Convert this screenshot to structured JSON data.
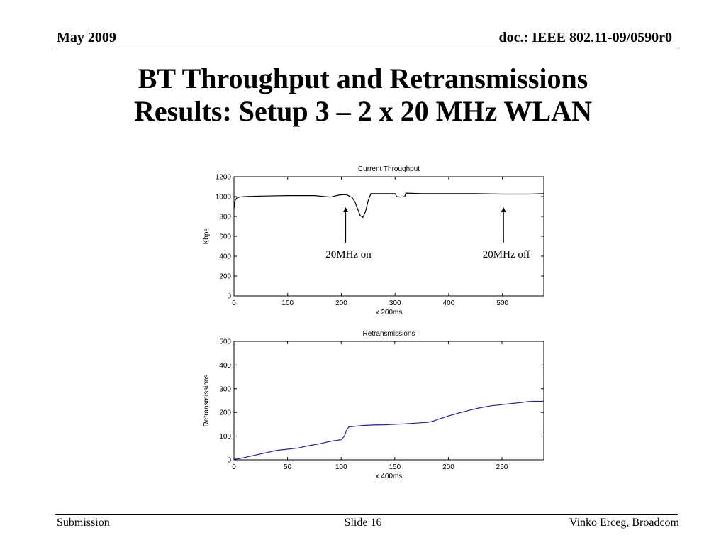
{
  "header": {
    "left": "May 2009",
    "right": "doc.: IEEE 802.11-09/0590r0"
  },
  "title": {
    "line1": "BT Throughput and Retransmissions",
    "line2": "Results: Setup 3 – 2 x 20 MHz WLAN"
  },
  "footer": {
    "left": "Submission",
    "center": "Slide 16",
    "right": "Vinko Erceg, Broadcom"
  },
  "chart_data": [
    {
      "type": "line",
      "title": "Current Throughput",
      "xlabel": "x 200ms",
      "ylabel": "Kbps",
      "xlim": [
        0,
        577
      ],
      "ylim": [
        0,
        1200
      ],
      "xticks": [
        0,
        100,
        200,
        300,
        400,
        500
      ],
      "yticks": [
        0,
        200,
        400,
        600,
        800,
        1000,
        1200
      ],
      "grid": false,
      "line_color": "#000000",
      "series": [
        {
          "x": [
            0,
            2,
            5,
            10,
            20,
            50,
            100,
            150,
            180,
            195,
            205,
            210,
            215,
            220,
            225,
            230,
            235,
            240,
            245,
            250,
            255,
            300,
            303,
            310,
            318,
            320,
            350,
            400,
            450,
            500,
            550,
            577
          ],
          "y": [
            880,
            960,
            985,
            995,
            1000,
            1005,
            1010,
            1010,
            995,
            1015,
            1020,
            1018,
            1005,
            990,
            950,
            880,
            810,
            790,
            850,
            960,
            1030,
            1030,
            1000,
            995,
            1000,
            1035,
            1030,
            1030,
            1030,
            1025,
            1025,
            1030
          ]
        }
      ],
      "annotations": [
        {
          "text": "20MHz on",
          "x": 208
        },
        {
          "text": "20MHz off",
          "x": 502
        }
      ]
    },
    {
      "type": "line",
      "title": "Retransmissions",
      "xlabel": "x 400ms",
      "ylabel": "Retransmissions",
      "xlim": [
        0,
        289
      ],
      "ylim": [
        0,
        500
      ],
      "xticks": [
        0,
        50,
        100,
        150,
        200,
        250
      ],
      "yticks": [
        0,
        100,
        200,
        300,
        400,
        500
      ],
      "grid": false,
      "line_color": "#1f1fb0",
      "series": [
        {
          "x": [
            0,
            5,
            10,
            20,
            30,
            40,
            50,
            60,
            70,
            80,
            90,
            100,
            103,
            105,
            107,
            110,
            120,
            130,
            140,
            150,
            160,
            170,
            180,
            185,
            190,
            200,
            210,
            220,
            230,
            240,
            250,
            260,
            270,
            275,
            280,
            289
          ],
          "y": [
            2,
            5,
            10,
            20,
            30,
            40,
            45,
            50,
            60,
            68,
            78,
            85,
            100,
            125,
            138,
            140,
            145,
            147,
            148,
            150,
            152,
            155,
            158,
            162,
            170,
            185,
            198,
            210,
            220,
            228,
            233,
            238,
            243,
            246,
            247,
            247
          ]
        }
      ]
    }
  ]
}
